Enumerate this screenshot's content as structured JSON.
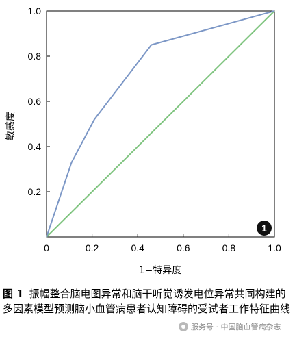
{
  "chart_data": {
    "type": "line",
    "xlabel": "1−特异度",
    "ylabel": "敏感度",
    "xlim": [
      0,
      1
    ],
    "ylim": [
      0,
      1
    ],
    "x_ticks": [
      "0",
      "0.2",
      "0.4",
      "0.6",
      "0.8",
      "1.0"
    ],
    "y_ticks": [
      "0.2",
      "0.4",
      "0.6",
      "0.8",
      "1.0"
    ],
    "grid": false,
    "series": [
      {
        "color": "#7c97c6",
        "x": [
          0,
          0.11,
          0.21,
          0.46,
          1.0
        ],
        "y": [
          0,
          0.33,
          0.52,
          0.85,
          1.0
        ]
      },
      {
        "color": "#7fc47f",
        "x": [
          0,
          1.0
        ],
        "y": [
          0,
          1.0
        ]
      }
    ],
    "badge": "1"
  },
  "caption": {
    "label": "图 1",
    "text": "振幅整合脑电图异常和脑干听觉诱发电位异常共同构建的多因素模型预测脑小血管病患者认知障碍的受试者工作特征曲线"
  },
  "watermark": "服务号 · 中国脑血管病杂志"
}
